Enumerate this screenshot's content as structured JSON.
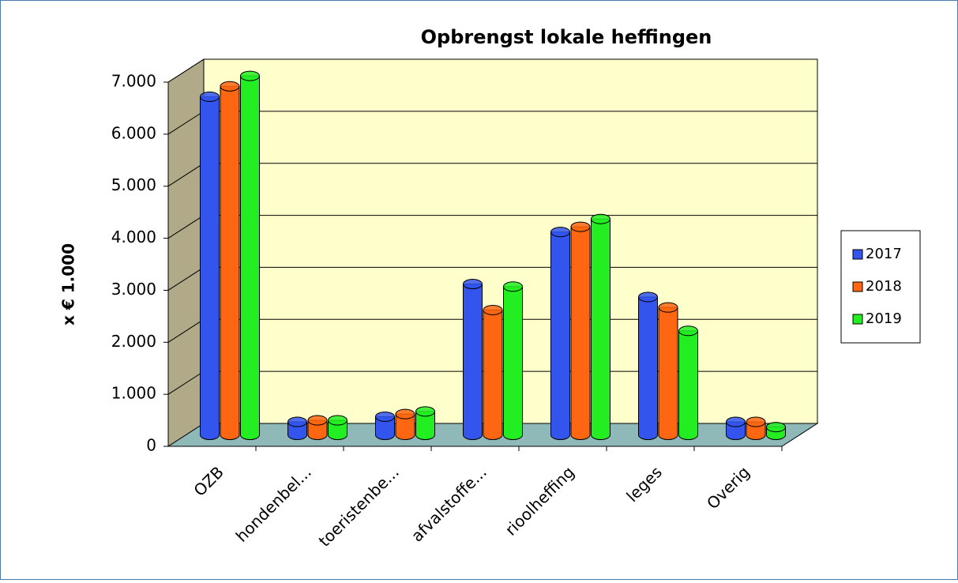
{
  "chart_data": {
    "type": "bar",
    "title": "Opbrengst lokale heffingen",
    "y_label": "x € 1.000",
    "categories": [
      "OZB",
      "hondenbel...",
      "toeristenbe...",
      "afvalstoffe...",
      "rioolheffing",
      "leges",
      "Overig"
    ],
    "series": [
      {
        "name": "2017",
        "color": "#3355ee",
        "values": [
          6500,
          250,
          350,
          2900,
          3900,
          2650,
          250
        ]
      },
      {
        "name": "2018",
        "color": "#ff6611",
        "values": [
          6700,
          280,
          400,
          2400,
          4000,
          2450,
          250
        ]
      },
      {
        "name": "2019",
        "color": "#22ee22",
        "values": [
          6900,
          280,
          450,
          2850,
          4150,
          2000,
          150
        ]
      }
    ],
    "ylim": [
      0,
      7000
    ],
    "yticks": [
      0,
      {
        "value": 1000,
        "label": "1.000"
      },
      {
        "value": 2000,
        "label": "2.000"
      },
      {
        "value": 3000,
        "label": "3.000"
      },
      {
        "value": 4000,
        "label": "4.000"
      },
      {
        "value": 5000,
        "label": "5.000"
      },
      {
        "value": 6000,
        "label": "6.000"
      },
      {
        "value": 7000,
        "label": "7.000"
      }
    ],
    "grid": true,
    "legend": "right"
  }
}
